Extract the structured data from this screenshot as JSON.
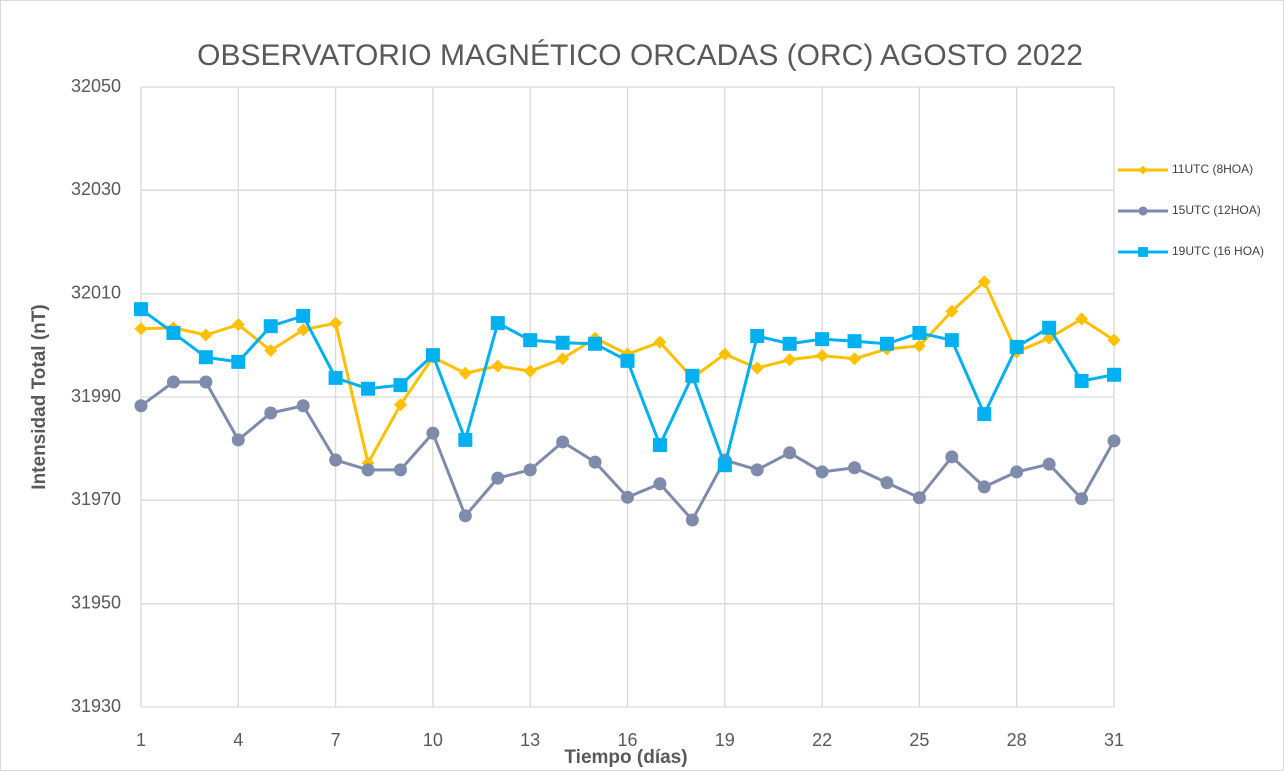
{
  "chart_data": {
    "type": "line",
    "title": "OBSERVATORIO MAGNÉTICO ORCADAS (ORC) AGOSTO 2022",
    "x_label": "Tiempo (días)",
    "y_label": "Intensidad Total (nT)",
    "x": [
      1,
      2,
      3,
      4,
      5,
      6,
      7,
      8,
      9,
      10,
      11,
      12,
      13,
      14,
      15,
      16,
      17,
      18,
      19,
      20,
      21,
      22,
      23,
      24,
      25,
      26,
      27,
      28,
      29,
      30,
      31
    ],
    "series": [
      {
        "name": "11UTC (8HOA)",
        "color": "#ffc000",
        "marker": "diamond",
        "values": [
          32003.2,
          32003.4,
          32002,
          32004,
          31999,
          32003,
          32004.3,
          31977.2,
          31988.5,
          31997.7,
          31994.6,
          31996,
          31995,
          31997.4,
          32001.4,
          31998.3,
          32000.6,
          31993.7,
          31998.3,
          31995.6,
          31997.2,
          31998,
          31997.4,
          31999.3,
          31999.9,
          32006.6,
          32012.3,
          31998.7,
          32001.4,
          32005.1,
          32001
        ]
      },
      {
        "name": "15UTC (12HOA)",
        "color": "#7f8bab",
        "marker": "circle",
        "values": [
          31988.3,
          31992.9,
          31992.9,
          31981.7,
          31986.9,
          31988.3,
          31977.8,
          31975.9,
          31975.9,
          31983,
          31967,
          31974.3,
          31975.9,
          31981.3,
          31977.4,
          31970.6,
          31973.2,
          31966.2,
          31977.8,
          31975.9,
          31979.2,
          31975.5,
          31976.3,
          31973.4,
          31970.5,
          31978.4,
          31972.6,
          31975.5,
          31977,
          31970.3,
          31981.5
        ]
      },
      {
        "name": "19UTC (16 HOA)",
        "color": "#00b0f0",
        "marker": "square",
        "values": [
          32007,
          32002.4,
          31997.7,
          31996.8,
          32003.7,
          32005.7,
          31993.7,
          31991.6,
          31992.3,
          31998.1,
          31981.7,
          32004.3,
          32001,
          32000.5,
          32000.3,
          31997,
          31980.7,
          31994.1,
          31976.8,
          32001.8,
          32000.3,
          32001.2,
          32000.8,
          32000.3,
          32002.4,
          32001,
          31986.7,
          31999.7,
          32003.4,
          31993.1,
          31994.3
        ]
      }
    ],
    "xlim": [
      1,
      31
    ],
    "xticks": [
      1,
      4,
      7,
      10,
      13,
      16,
      19,
      22,
      25,
      28,
      31
    ],
    "ylim": [
      31930,
      32050
    ],
    "yticks": [
      31930,
      31950,
      31970,
      31990,
      32010,
      32030,
      32050
    ],
    "grid": true,
    "legend": "right"
  }
}
